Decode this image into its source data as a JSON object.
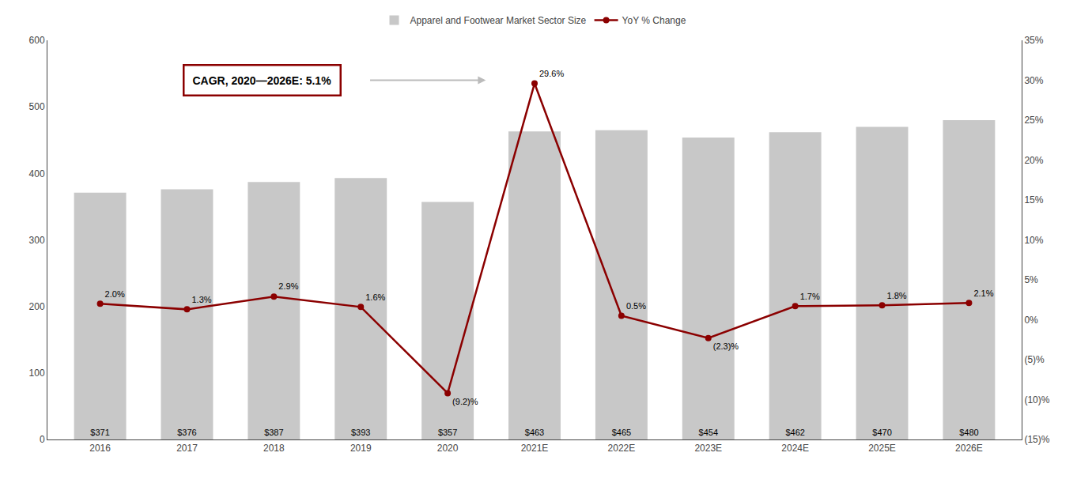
{
  "chart_data": {
    "type": "bar",
    "categories": [
      "2016",
      "2017",
      "2018",
      "2019",
      "2020",
      "2021E",
      "2022E",
      "2023E",
      "2024E",
      "2025E",
      "2026E"
    ],
    "series": [
      {
        "name": "Apparel and Footwear Market Sector Size",
        "type": "bar",
        "color": "#c8c8c8",
        "values": [
          371,
          376,
          387,
          393,
          357,
          463,
          465,
          454,
          462,
          470,
          480
        ],
        "value_labels": [
          "$371",
          "$376",
          "$387",
          "$393",
          "$357",
          "$463",
          "$465",
          "$454",
          "$462",
          "$470",
          "$480"
        ]
      },
      {
        "name": "YoY % Change",
        "type": "line",
        "axis": "y2",
        "color": "#8b0000",
        "marker": "circle",
        "line_style": "solid",
        "values": [
          2.0,
          1.3,
          2.9,
          1.6,
          -9.2,
          29.6,
          0.5,
          -2.3,
          1.7,
          1.8,
          2.1
        ],
        "value_labels": [
          "2.0%",
          "1.3%",
          "2.9%",
          "1.6%",
          "(9.2)%",
          "29.6%",
          "0.5%",
          "(2.3)%",
          "1.7%",
          "1.8%",
          "2.1%"
        ]
      }
    ],
    "ylim": [
      0,
      600
    ],
    "yticks": [
      0,
      100,
      200,
      300,
      400,
      500,
      600
    ],
    "y2lim": [
      -15,
      35
    ],
    "y2ticks": [
      {
        "value": -15,
        "label": "(15)%"
      },
      {
        "value": -10,
        "label": "(10)%"
      },
      {
        "value": -5,
        "label": "(5)%"
      },
      {
        "value": 0,
        "label": "0%"
      },
      {
        "value": 5,
        "label": "5%"
      },
      {
        "value": 10,
        "label": "10%"
      },
      {
        "value": 15,
        "label": "15%"
      },
      {
        "value": 20,
        "label": "20%"
      },
      {
        "value": 25,
        "label": "25%"
      },
      {
        "value": 30,
        "label": "30%"
      },
      {
        "value": 35,
        "label": "35%"
      }
    ],
    "annotations": [
      "CAGR, 2020—2026E: 5.1%"
    ],
    "data_labels": true,
    "legend": "top",
    "grid": false
  }
}
